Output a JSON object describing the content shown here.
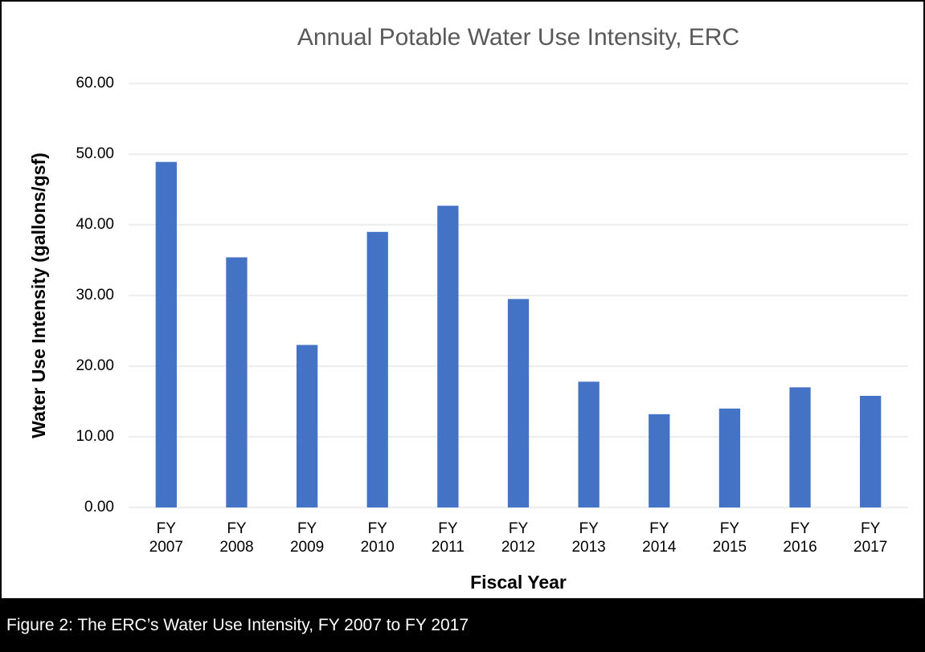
{
  "chart_data": {
    "type": "bar",
    "title": "Annual Potable Water Use Intensity, ERC",
    "caption": "Figure 2: The ERC’s Water Use Intensity, FY 2007 to FY 2017",
    "x_label": "Fiscal Year",
    "y_label": "Water Use Intensity (gallons/gsf)",
    "categories": [
      "FY 2007",
      "FY 2008",
      "FY 2009",
      "FY 2010",
      "FY 2011",
      "FY 2012",
      "FY 2013",
      "FY 2014",
      "FY 2015",
      "FY 2016",
      "FY 2017"
    ],
    "values": [
      48.9,
      35.4,
      23.0,
      39.0,
      42.7,
      29.5,
      17.8,
      13.2,
      14.0,
      17.0,
      15.8
    ],
    "color": "#4472c4",
    "ylim": [
      0,
      60
    ],
    "yticks": [
      {
        "value": 0,
        "label": "0.00"
      },
      {
        "value": 10,
        "label": "10.00"
      },
      {
        "value": 20,
        "label": "20.00"
      },
      {
        "value": 30,
        "label": "30.00"
      },
      {
        "value": 40,
        "label": "40.00"
      },
      {
        "value": 50,
        "label": "50.00"
      },
      {
        "value": 60,
        "label": "60.00"
      }
    ],
    "grid": true
  }
}
